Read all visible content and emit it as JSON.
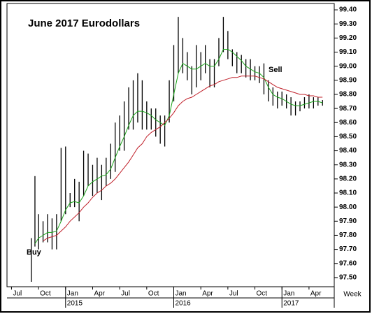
{
  "chart_data": {
    "type": "hilo",
    "title": "June 2017 Eurodollars",
    "x_label": "Week",
    "x": [
      2.2,
      2.6,
      3,
      3.5,
      4,
      4.5,
      5,
      5.5,
      6,
      6.5,
      7,
      7.5,
      8,
      8.5,
      9,
      9.5,
      10,
      10.5,
      11,
      11.5,
      12,
      12.5,
      13,
      13.5,
      14,
      14.5,
      15,
      15.5,
      16,
      16.5,
      17,
      17.5,
      18,
      18.5,
      19,
      19.5,
      20,
      20.5,
      21,
      21.5,
      22,
      22.5,
      23,
      23.5,
      24,
      24.5,
      25,
      25.5,
      26,
      26.5,
      27,
      27.5,
      28,
      28.5,
      29,
      29.5,
      30,
      30.5,
      31,
      31.5,
      32,
      32.5,
      33,
      33.5,
      34,
      34.5
    ],
    "low": [
      97.47,
      97.72,
      97.7,
      97.75,
      97.75,
      97.7,
      97.7,
      97.9,
      97.95,
      98.0,
      98.0,
      97.9,
      98.08,
      98.15,
      98.08,
      98.1,
      98.05,
      98.15,
      98.2,
      98.25,
      98.4,
      98.4,
      98.55,
      98.55,
      98.6,
      98.55,
      98.55,
      98.55,
      98.5,
      98.45,
      98.43,
      98.6,
      98.75,
      98.95,
      98.95,
      98.9,
      98.8,
      98.85,
      98.9,
      98.95,
      98.85,
      98.85,
      99.0,
      99.1,
      99.05,
      99.0,
      98.95,
      98.95,
      98.92,
      98.9,
      98.9,
      98.88,
      98.8,
      98.75,
      98.72,
      98.7,
      98.72,
      98.7,
      98.65,
      98.65,
      98.68,
      98.7,
      98.7,
      98.7,
      98.72,
      98.72
    ],
    "high": [
      97.78,
      98.22,
      97.95,
      97.9,
      97.95,
      97.92,
      97.95,
      98.42,
      98.43,
      98.1,
      98.2,
      98.18,
      98.4,
      98.38,
      98.3,
      98.35,
      98.3,
      98.35,
      98.45,
      98.6,
      98.65,
      98.75,
      98.85,
      98.9,
      98.95,
      98.9,
      98.75,
      98.7,
      98.7,
      98.65,
      98.65,
      98.9,
      99.15,
      99.35,
      99.2,
      99.1,
      99.0,
      99.15,
      99.1,
      99.15,
      99.05,
      99.05,
      99.2,
      99.35,
      99.25,
      99.12,
      99.1,
      99.08,
      99.05,
      99.05,
      99.0,
      99.0,
      99.02,
      98.9,
      98.85,
      98.82,
      98.82,
      98.8,
      98.78,
      98.75,
      98.75,
      98.78,
      98.8,
      98.78,
      98.78,
      98.76
    ],
    "bar_color": "#000000",
    "ma_lines": [
      {
        "color": "#19a319",
        "values": [
          null,
          97.74,
          97.78,
          97.8,
          97.82,
          97.82,
          97.83,
          97.9,
          97.98,
          98.03,
          98.04,
          98.03,
          98.08,
          98.15,
          98.18,
          98.2,
          98.22,
          98.23,
          98.27,
          98.35,
          98.43,
          98.5,
          98.58,
          98.65,
          98.68,
          98.68,
          98.67,
          98.65,
          98.62,
          98.6,
          98.58,
          98.65,
          98.8,
          98.95,
          99.02,
          99.0,
          98.98,
          98.98,
          99.0,
          99.02,
          99.0,
          99.0,
          99.05,
          99.12,
          99.12,
          99.1,
          99.07,
          99.04,
          99.0,
          98.98,
          98.96,
          98.95,
          98.92,
          98.85,
          98.8,
          98.78,
          98.77,
          98.75,
          98.73,
          98.72,
          98.72,
          98.73,
          98.74,
          98.75,
          98.75,
          98.74
        ]
      },
      {
        "color": "#c0202a",
        "values": [
          null,
          null,
          null,
          97.76,
          97.78,
          97.79,
          97.8,
          97.83,
          97.86,
          97.9,
          97.93,
          97.96,
          98.0,
          98.03,
          98.07,
          98.1,
          98.12,
          98.15,
          98.17,
          98.2,
          98.24,
          98.28,
          98.32,
          98.37,
          98.42,
          98.45,
          98.5,
          98.53,
          98.55,
          98.57,
          98.6,
          98.63,
          98.67,
          98.72,
          98.75,
          98.77,
          98.78,
          98.8,
          98.82,
          98.84,
          98.86,
          98.87,
          98.89,
          98.9,
          98.91,
          98.92,
          98.92,
          98.93,
          98.93,
          98.93,
          98.93,
          98.92,
          98.91,
          98.89,
          98.87,
          98.85,
          98.84,
          98.83,
          98.82,
          98.81,
          98.8,
          98.8,
          98.79,
          98.79,
          98.78,
          98.78
        ]
      }
    ],
    "annotations": [
      {
        "text": "Buy",
        "color": "#19a319"
      },
      {
        "text": "Sell",
        "color": "#e00000"
      }
    ],
    "xlim": [
      -0.5,
      35.8
    ],
    "ylim": [
      97.435,
      99.445
    ],
    "xticks": [
      {
        "value": 0,
        "label": "Jul"
      },
      {
        "value": 3,
        "label": "Oct"
      },
      {
        "value": 6,
        "label": "Jan"
      },
      {
        "value": 9,
        "label": "Apr"
      },
      {
        "value": 12,
        "label": "Jul"
      },
      {
        "value": 15,
        "label": "Oct"
      },
      {
        "value": 18,
        "label": "Jan"
      },
      {
        "value": 21,
        "label": "Apr"
      },
      {
        "value": 24,
        "label": "Jul"
      },
      {
        "value": 27,
        "label": "Oct"
      },
      {
        "value": 30,
        "label": "Jan"
      },
      {
        "value": 33,
        "label": "Apr"
      }
    ],
    "year_labels": [
      {
        "value": 6,
        "label": "2015"
      },
      {
        "value": 18,
        "label": "2016"
      },
      {
        "value": 30,
        "label": "2017"
      }
    ],
    "yticks": [
      {
        "value": 97.5,
        "label": "97.50"
      },
      {
        "value": 97.6,
        "label": "97.60"
      },
      {
        "value": 97.7,
        "label": "97.70"
      },
      {
        "value": 97.8,
        "label": "97.80"
      },
      {
        "value": 97.9,
        "label": "97.90"
      },
      {
        "value": 98.0,
        "label": "98.00"
      },
      {
        "value": 98.1,
        "label": "98.10"
      },
      {
        "value": 98.2,
        "label": "98.20"
      },
      {
        "value": 98.3,
        "label": "98.30"
      },
      {
        "value": 98.4,
        "label": "98.40"
      },
      {
        "value": 98.5,
        "label": "98.50"
      },
      {
        "value": 98.6,
        "label": "98.60"
      },
      {
        "value": 98.7,
        "label": "98.70"
      },
      {
        "value": 98.8,
        "label": "98.80"
      },
      {
        "value": 98.9,
        "label": "98.90"
      },
      {
        "value": 99.0,
        "label": "99.00"
      },
      {
        "value": 99.1,
        "label": "99.10"
      },
      {
        "value": 99.2,
        "label": "99.20"
      },
      {
        "value": 99.3,
        "label": "99.30"
      },
      {
        "value": 99.4,
        "label": "99.40"
      }
    ]
  }
}
